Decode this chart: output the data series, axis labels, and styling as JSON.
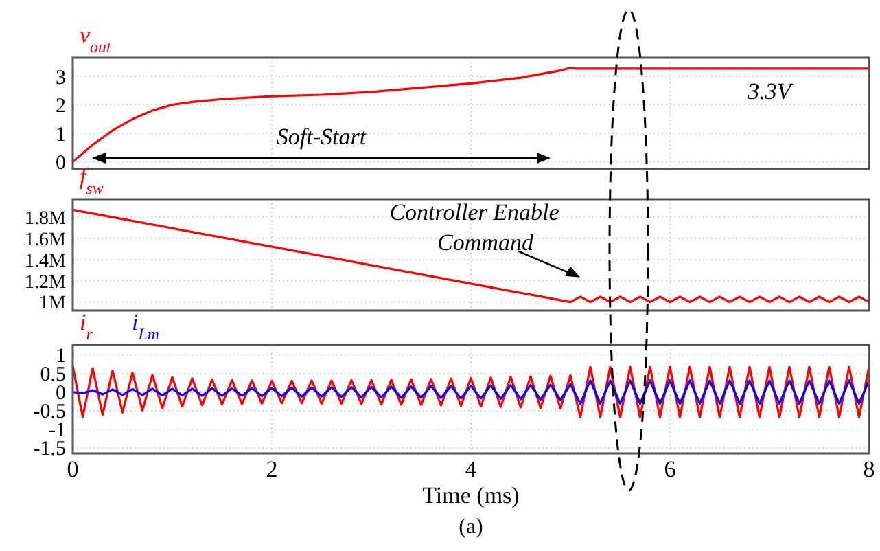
{
  "chart_data": [
    {
      "type": "line",
      "xlim": [
        0,
        8
      ],
      "xticks": [
        0,
        2,
        4,
        6,
        8
      ],
      "ylim": [
        -0.25,
        3.65
      ],
      "yticks": [
        0,
        1,
        2,
        3
      ],
      "grid": true,
      "tick_labels": "y",
      "legend": "top left",
      "line_style": "solid",
      "marker": "none",
      "x": [
        0,
        0.2,
        0.4,
        0.6,
        0.8,
        1.0,
        1.2,
        1.5,
        2.0,
        2.5,
        3.0,
        3.5,
        4.0,
        4.5,
        4.9,
        5.0,
        5.05,
        8.0
      ],
      "series": [
        {
          "name": "v$_{out}$",
          "color": "#ff0000",
          "values": [
            0,
            0.6,
            1.1,
            1.5,
            1.8,
            2.0,
            2.1,
            2.2,
            2.3,
            2.35,
            2.45,
            2.6,
            2.75,
            2.95,
            3.2,
            3.3,
            3.27,
            3.27
          ]
        }
      ],
      "annotations": [
        "Soft-Start",
        {
          "text": "3.3V",
          "x": 7,
          "y": 3.27
        }
      ]
    },
    {
      "type": "line",
      "xlim": [
        0,
        8
      ],
      "xticks": [
        0,
        2,
        4,
        6,
        8
      ],
      "ylim": [
        920000,
        1970000
      ],
      "yticks": [
        {
          "value": 1000000,
          "label": "1M"
        },
        {
          "value": 1200000,
          "label": "1.2M"
        },
        {
          "value": 1400000,
          "label": "1.4M"
        },
        {
          "value": 1600000,
          "label": "1.6M"
        },
        {
          "value": 1800000,
          "label": "1.8M"
        }
      ],
      "grid": true,
      "tick_labels": "y",
      "legend": "top left",
      "line_style": "solid",
      "marker": "none",
      "series": [
        {
          "name": "f$_{sw}$",
          "color": "#ff0000",
          "x": [
            0,
            5.0,
            5.1,
            5.2,
            5.3,
            5.4,
            5.5,
            5.6,
            5.7,
            5.8,
            5.9,
            6.0,
            6.1,
            6.2,
            6.3,
            6.4,
            6.5,
            6.6,
            6.7,
            6.8,
            6.9,
            7.0,
            7.1,
            7.2,
            7.3,
            7.4,
            7.5,
            7.6,
            7.7,
            7.8,
            7.9,
            8.0
          ],
          "values": [
            1870000,
            1000000,
            1050000,
            1000000,
            1050000,
            1000000,
            1050000,
            1000000,
            1050000,
            1000000,
            1050000,
            1000000,
            1050000,
            1000000,
            1050000,
            1000000,
            1050000,
            1000000,
            1050000,
            1000000,
            1050000,
            1000000,
            1050000,
            1000000,
            1050000,
            1000000,
            1050000,
            1000000,
            1050000,
            1000000,
            1050000,
            1000000
          ]
        }
      ],
      "annotations": [
        {
          "text": "Controller Enable Command",
          "x": 5,
          "y": 1000000
        }
      ]
    },
    {
      "type": "line",
      "xlim": [
        0,
        8
      ],
      "xticks": [
        0,
        2,
        4,
        6,
        8
      ],
      "ylim": [
        -1.65,
        1.27
      ],
      "yticks": [
        -1.5,
        -1,
        -0.5,
        0,
        0.5,
        1
      ],
      "grid": true,
      "legend": "top left",
      "line_style": "solid",
      "marker": "none",
      "xlabel": "Time (ms)",
      "x": [
        0,
        0.1,
        0.2,
        0.3,
        0.4,
        0.5,
        0.6,
        0.7,
        0.8,
        0.9,
        1.0,
        1.1,
        1.2,
        1.3,
        1.4,
        1.5,
        1.6,
        1.7,
        1.8,
        1.9,
        2.0,
        2.1,
        2.2,
        2.3,
        2.4,
        2.5,
        2.6,
        2.7,
        2.8,
        2.9,
        3.0,
        3.1,
        3.2,
        3.3,
        3.4,
        3.5,
        3.6,
        3.7,
        3.8,
        3.9,
        4.0,
        4.1,
        4.2,
        4.3,
        4.4,
        4.5,
        4.6,
        4.7,
        4.8,
        4.9,
        5.0,
        5.1,
        5.2,
        5.3,
        5.4,
        5.5,
        5.6,
        5.7,
        5.8,
        5.9,
        6.0,
        6.1,
        6.2,
        6.3,
        6.4,
        6.5,
        6.6,
        6.7,
        6.8,
        6.9,
        7.0,
        7.1,
        7.2,
        7.3,
        7.4,
        7.5,
        7.6,
        7.7,
        7.8,
        7.9,
        8.0
      ],
      "series": [
        {
          "name": "i$_{r}$",
          "color": "#ff0000",
          "values": [
            0.7,
            -0.67,
            0.64,
            -0.61,
            0.58,
            -0.55,
            0.52,
            -0.49,
            0.46,
            -0.43,
            0.4,
            -0.39,
            0.37,
            -0.36,
            0.34,
            -0.33,
            0.32,
            -0.32,
            0.31,
            -0.31,
            0.3,
            -0.3,
            0.3,
            -0.3,
            0.31,
            -0.31,
            0.31,
            -0.31,
            0.32,
            -0.32,
            0.32,
            -0.33,
            0.33,
            -0.34,
            0.34,
            -0.35,
            0.35,
            -0.36,
            0.36,
            -0.37,
            0.38,
            -0.39,
            0.39,
            -0.4,
            0.41,
            -0.41,
            0.42,
            -0.43,
            0.44,
            -0.44,
            0.45,
            -0.68,
            0.68,
            -0.68,
            0.68,
            -0.68,
            0.68,
            -0.68,
            0.68,
            -0.68,
            0.68,
            -0.68,
            0.68,
            -0.68,
            0.68,
            -0.68,
            0.68,
            -0.68,
            0.68,
            -0.68,
            0.68,
            -0.68,
            0.68,
            -0.68,
            0.68,
            -0.68,
            0.68,
            -0.68,
            0.68,
            -0.68,
            0.68
          ]
        },
        {
          "name": "i$_{Lm}$",
          "color": "#0000ff",
          "values": [
            0.0,
            -0.03,
            0.05,
            -0.06,
            0.07,
            -0.08,
            0.08,
            -0.08,
            0.09,
            -0.09,
            0.09,
            -0.09,
            0.09,
            -0.1,
            0.1,
            -0.1,
            0.1,
            -0.1,
            0.11,
            -0.11,
            0.11,
            -0.11,
            0.12,
            -0.12,
            0.12,
            -0.12,
            0.13,
            -0.13,
            0.13,
            -0.14,
            0.14,
            -0.14,
            0.15,
            -0.15,
            0.15,
            -0.15,
            0.16,
            -0.16,
            0.16,
            -0.17,
            0.17,
            -0.17,
            0.18,
            -0.18,
            0.19,
            -0.19,
            0.19,
            -0.2,
            0.2,
            -0.21,
            0.21,
            -0.31,
            0.31,
            -0.31,
            0.31,
            -0.31,
            0.31,
            -0.31,
            0.31,
            -0.31,
            0.31,
            -0.31,
            0.31,
            -0.31,
            0.31,
            -0.31,
            0.31,
            -0.31,
            0.31,
            -0.31,
            0.31,
            -0.31,
            0.31,
            -0.31,
            0.31,
            -0.31,
            0.31,
            -0.31,
            0.31,
            -0.31,
            0.31
          ]
        }
      ],
      "annotations": [
        "(a)"
      ]
    }
  ]
}
